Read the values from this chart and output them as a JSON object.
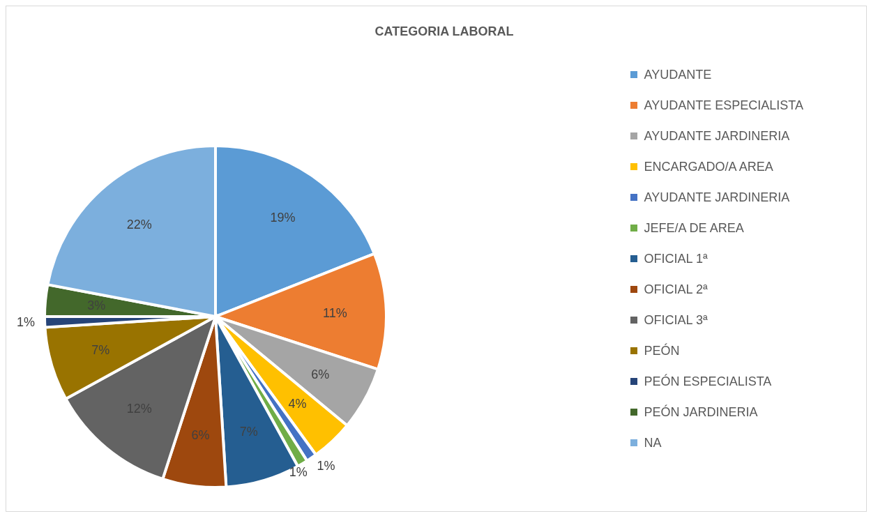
{
  "chart_data": {
    "type": "pie",
    "title": "CATEGORIA LABORAL",
    "categories": [
      "AYUDANTE",
      "AYUDANTE ESPECIALISTA",
      "AYUDANTE JARDINERIA",
      "ENCARGADO/A AREA",
      "AYUDANTE JARDINERIA",
      "JEFE/A DE AREA",
      "OFICIAL 1ª",
      "OFICIAL 2ª",
      "OFICIAL 3ª",
      "PEÓN",
      "PEÓN ESPECIALISTA",
      "PEÓN JARDINERIA",
      "NA"
    ],
    "values": [
      19,
      11,
      6,
      4,
      1,
      1,
      7,
      6,
      12,
      7,
      1,
      3,
      22
    ],
    "value_labels": [
      "19%",
      "11%",
      "6%",
      "4%",
      "1%",
      "1%",
      "7%",
      "6%",
      "12%",
      "7%",
      "1%",
      "3%",
      "22%"
    ],
    "colors": [
      "#5b9bd5",
      "#ed7d31",
      "#a5a5a5",
      "#ffc000",
      "#4472c4",
      "#70ad47",
      "#255e91",
      "#9e480e",
      "#636363",
      "#997300",
      "#264478",
      "#43682b",
      "#7cafdd"
    ],
    "legend": "right"
  }
}
